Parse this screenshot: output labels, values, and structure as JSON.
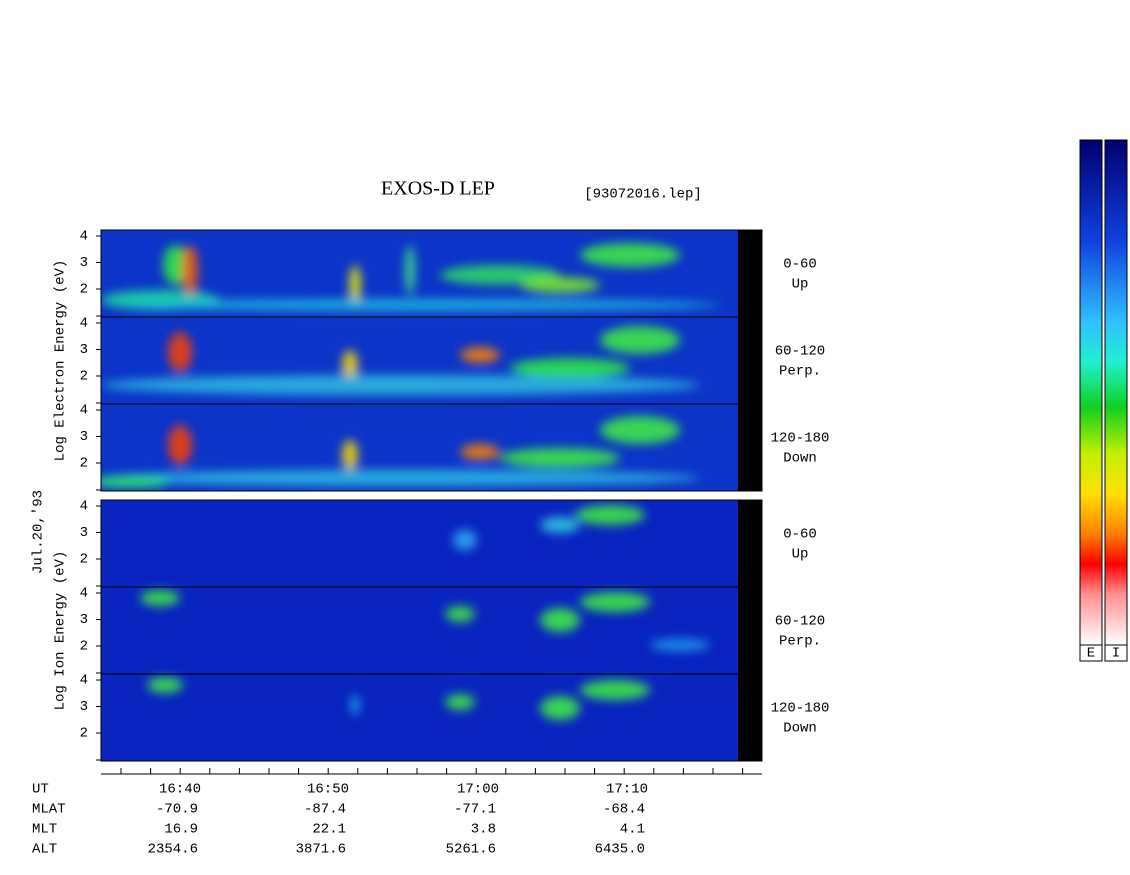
{
  "header": {
    "title": "EXOS-D LEP",
    "file": "[93072016.lep]"
  },
  "date": "Jul.20,'93",
  "yticks": [
    "2",
    "3",
    "4"
  ],
  "electron": {
    "ylabel": "Log Electron Energy (eV)",
    "panels": [
      {
        "angle": "0-60",
        "direction": "Up"
      },
      {
        "angle": "60-120",
        "direction": "Perp."
      },
      {
        "angle": "120-180",
        "direction": "Down"
      }
    ]
  },
  "ion": {
    "ylabel": "Log Ion Energy (eV)",
    "panels": [
      {
        "angle": "0-60",
        "direction": "Up"
      },
      {
        "angle": "60-120",
        "direction": "Perp."
      },
      {
        "angle": "120-180",
        "direction": "Down"
      }
    ]
  },
  "time_axis": {
    "label": "UT",
    "ticks": [
      "16:40",
      "16:50",
      "17:00",
      "17:10"
    ]
  },
  "ephemeris": [
    {
      "label": "MLAT",
      "values": [
        "-70.9",
        "-87.4",
        "-77.1",
        "-68.4"
      ]
    },
    {
      "label": "MLT",
      "values": [
        "16.9",
        "22.1",
        "3.8",
        "4.1"
      ]
    },
    {
      "label": "ALT",
      "values": [
        "2354.6",
        "3871.6",
        "5261.6",
        "6435.0"
      ]
    }
  ],
  "colorbar": {
    "labels": [
      "E",
      "I"
    ]
  }
}
